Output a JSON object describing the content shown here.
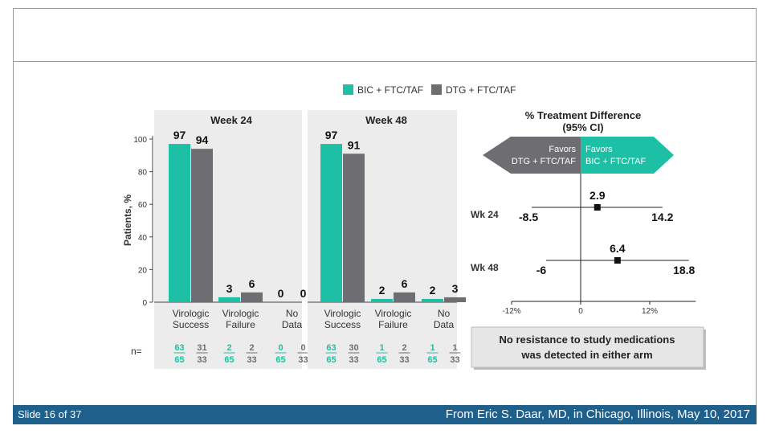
{
  "footer": {
    "slide_label": "Slide 16 of 37",
    "source": "From Eric S. Daar, MD, in Chicago, Illinois, May 10, 2017"
  },
  "colors": {
    "bic": "#1ec0a5",
    "dtg": "#6e6e72",
    "panel_bg": "#ececec",
    "footer_bg": "#1f5f8b"
  },
  "legend": {
    "bic": "BIC + FTC/TAF",
    "dtg": "DTG + FTC/TAF"
  },
  "chart_data": [
    {
      "type": "bar",
      "title": "Week 24",
      "ylabel": "Patients, %",
      "ylim": [
        0,
        100
      ],
      "yticks": [
        "0",
        "20",
        "40",
        "60",
        "80",
        "100"
      ],
      "categories": [
        "Virologic Success",
        "Virologic Failure",
        "No Data"
      ],
      "category_lines": [
        [
          "Virologic",
          "Success"
        ],
        [
          "Virologic",
          "Failure"
        ],
        [
          "No",
          "Data"
        ]
      ],
      "series": [
        {
          "name": "BIC + FTC/TAF",
          "values": [
            97,
            3,
            0
          ],
          "labels": [
            "97",
            "3",
            "0"
          ],
          "n_num": [
            "63",
            "2",
            "0"
          ],
          "n_den": [
            "65",
            "65",
            "65"
          ]
        },
        {
          "name": "DTG + FTC/TAF",
          "values": [
            94,
            6,
            0
          ],
          "labels": [
            "94",
            "6",
            "0"
          ],
          "n_num": [
            "31",
            "2",
            "0"
          ],
          "n_den": [
            "33",
            "33",
            "33"
          ]
        }
      ],
      "n_label": "n="
    },
    {
      "type": "bar",
      "title": "Week 48",
      "ylabel": "",
      "ylim": [
        0,
        100
      ],
      "categories": [
        "Virologic Success",
        "Virologic Failure",
        "No Data"
      ],
      "category_lines": [
        [
          "Virologic",
          "Success"
        ],
        [
          "Virologic",
          "Failure"
        ],
        [
          "No",
          "Data"
        ]
      ],
      "series": [
        {
          "name": "BIC + FTC/TAF",
          "values": [
            97,
            2,
            2
          ],
          "labels": [
            "97",
            "2",
            "2"
          ],
          "n_num": [
            "63",
            "1",
            "1"
          ],
          "n_den": [
            "65",
            "65",
            "65"
          ]
        },
        {
          "name": "DTG + FTC/TAF",
          "values": [
            91,
            6,
            3
          ],
          "labels": [
            "91",
            "6",
            "3"
          ],
          "n_num": [
            "30",
            "2",
            "1"
          ],
          "n_den": [
            "33",
            "33",
            "33"
          ]
        }
      ]
    },
    {
      "type": "forest",
      "title_lines": [
        "% Treatment Difference",
        "(95% CI)"
      ],
      "xlim": [
        -15,
        20
      ],
      "ticks": [
        -12,
        0,
        12
      ],
      "tick_labels": [
        "-12%",
        "0",
        "12%"
      ],
      "favors_left": [
        "Favors",
        "DTG + FTC/TAF"
      ],
      "favors_right": [
        "Favors",
        "BIC + FTC/TAF"
      ],
      "rows": [
        {
          "label": "Wk 24",
          "estimate": 2.9,
          "lower": -8.5,
          "upper": 14.2,
          "est_label": "2.9",
          "lower_label": "-8.5",
          "upper_label": "14.2"
        },
        {
          "label": "Wk 48",
          "estimate": 6.4,
          "lower": -6,
          "upper": 18.8,
          "est_label": "6.4",
          "lower_label": "-6",
          "upper_label": "18.8"
        }
      ],
      "note_lines": [
        "No resistance to study medications",
        "was detected in either arm"
      ]
    }
  ]
}
